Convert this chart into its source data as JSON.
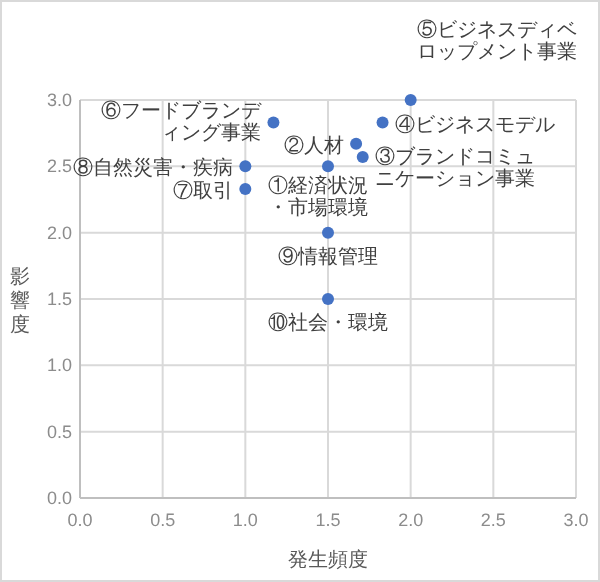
{
  "chart_data": {
    "type": "scatter",
    "xlabel": "発生頻度",
    "ylabel": "影響度",
    "x": [
      2.0,
      1.17,
      1.83,
      1.67,
      1.71,
      1.0,
      1.5,
      1.0,
      1.5,
      1.5
    ],
    "series": [
      {
        "color": "#4472c4",
        "values": [
          3.0,
          2.83,
          2.83,
          2.67,
          2.57,
          2.5,
          2.5,
          2.33,
          2.0,
          1.5
        ]
      }
    ],
    "annotations": [
      {
        "text": "⑤ビジネスディベロップメント事業",
        "x": 2.0,
        "y": 3.0
      },
      {
        "text": "⑥フードブランディング事業",
        "x": 1.17,
        "y": 2.83
      },
      {
        "text": "④ビジネスモデル",
        "x": 1.83,
        "y": 2.83
      },
      {
        "text": "②人材",
        "x": 1.67,
        "y": 2.67
      },
      {
        "text": "③ブランドコミュニケーション事業",
        "x": 1.71,
        "y": 2.57
      },
      {
        "text": "⑧自然災害・疾病",
        "x": 1.0,
        "y": 2.5
      },
      {
        "text": "①経済状況・市場環境",
        "x": 1.5,
        "y": 2.5
      },
      {
        "text": "⑦取引",
        "x": 1.0,
        "y": 2.33
      },
      {
        "text": "⑨情報管理",
        "x": 1.5,
        "y": 2.0
      },
      {
        "text": "⑩社会・環境",
        "x": 1.5,
        "y": 1.5
      }
    ],
    "xlim": [
      0,
      3
    ],
    "ylim": [
      0,
      3
    ],
    "xticks": [
      {
        "value": 0,
        "label": "0.0"
      },
      {
        "value": 0.5,
        "label": "0.5"
      },
      {
        "value": 1,
        "label": "1.0"
      },
      {
        "value": 1.5,
        "label": "1.5"
      },
      {
        "value": 2,
        "label": "2.0"
      },
      {
        "value": 2.5,
        "label": "2.5"
      },
      {
        "value": 3,
        "label": "3.0"
      }
    ],
    "yticks": [
      {
        "value": 0,
        "label": "0.0"
      },
      {
        "value": 0.5,
        "label": "0.5"
      },
      {
        "value": 1,
        "label": "1.0"
      },
      {
        "value": 1.5,
        "label": "1.5"
      },
      {
        "value": 2,
        "label": "2.0"
      },
      {
        "value": 2.5,
        "label": "2.5"
      },
      {
        "value": 3,
        "label": "3.0"
      }
    ],
    "grid": true,
    "marker": "circle"
  }
}
